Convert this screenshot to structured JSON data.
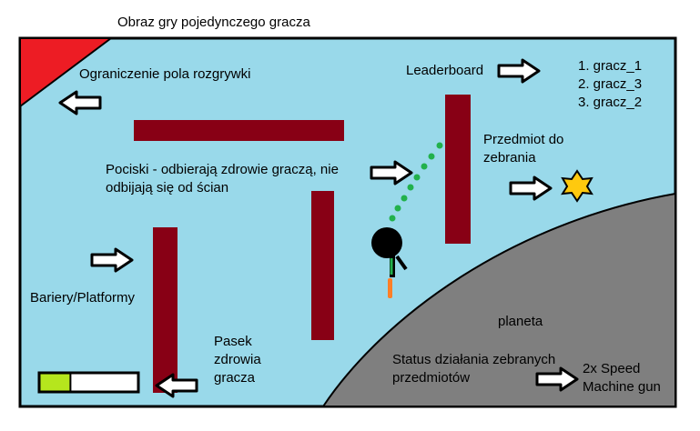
{
  "title": "Obraz gry pojedynczego gracza",
  "labels": {
    "boundary": "Ograniczenie pola rozgrywki",
    "leaderboard": "Leaderboard",
    "bullets": "Pociski - odbierają zdrowie graczą, nie odbijają się od ścian",
    "item": "Przedmiot do zebrania",
    "barriers": "Bariery/Platformy",
    "planet": "planeta",
    "health": "Pasek zdrowia gracza",
    "status": "Status działania zebranych przedmiotów"
  },
  "leaderboard_entries": [
    "1. gracz_1",
    "2. gracz_3",
    "3. gracz_2"
  ],
  "status_items": [
    "2x Speed",
    "Machine gun"
  ],
  "health_fraction": 0.31,
  "colors": {
    "field": "#99D9EA",
    "wall": "#880015",
    "planet": "#7F7F7F",
    "corner": "#ED1C24",
    "health": "#B5E61D",
    "bullet": "#22B14C",
    "item": "#FFC90E",
    "flame": "#FF7F27"
  }
}
